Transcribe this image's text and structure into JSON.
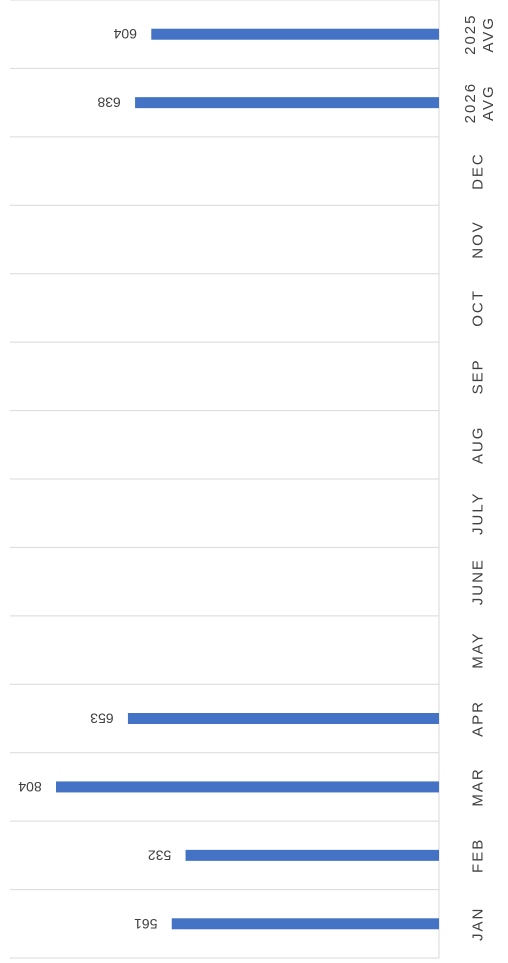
{
  "chart_data": {
    "type": "bar",
    "orientation": "horizontal",
    "categories": [
      "2025 AVG",
      "2026 AVG",
      "DEC",
      "NOV",
      "OCT",
      "SEP",
      "AUG",
      "JULY",
      "JUNE",
      "MAY",
      "APR",
      "MAR",
      "FEB",
      "JAN"
    ],
    "category_label_lines": [
      [
        "2025",
        "AVG"
      ],
      [
        "2026",
        "AVG"
      ],
      [
        "DEC"
      ],
      [
        "NOV"
      ],
      [
        "OCT"
      ],
      [
        "SEP"
      ],
      [
        "AUG"
      ],
      [
        "JULY"
      ],
      [
        "JUNE"
      ],
      [
        "MAY"
      ],
      [
        "APR"
      ],
      [
        "MAR"
      ],
      [
        "FEB"
      ],
      [
        "JAN"
      ]
    ],
    "values": [
      604,
      638,
      null,
      null,
      null,
      null,
      null,
      null,
      null,
      null,
      653,
      804,
      532,
      561
    ],
    "data_labels": [
      "604",
      "638",
      "",
      "",
      "",
      "",
      "",
      "",
      "",
      "",
      "653",
      "804",
      "532",
      "561"
    ],
    "xlim": [
      0,
      850
    ],
    "bar_color": "#4472C4",
    "grid": true,
    "title": "",
    "xlabel": "",
    "ylabel": "",
    "rotation": "rotated 180 degrees (upside-down rendering)"
  }
}
